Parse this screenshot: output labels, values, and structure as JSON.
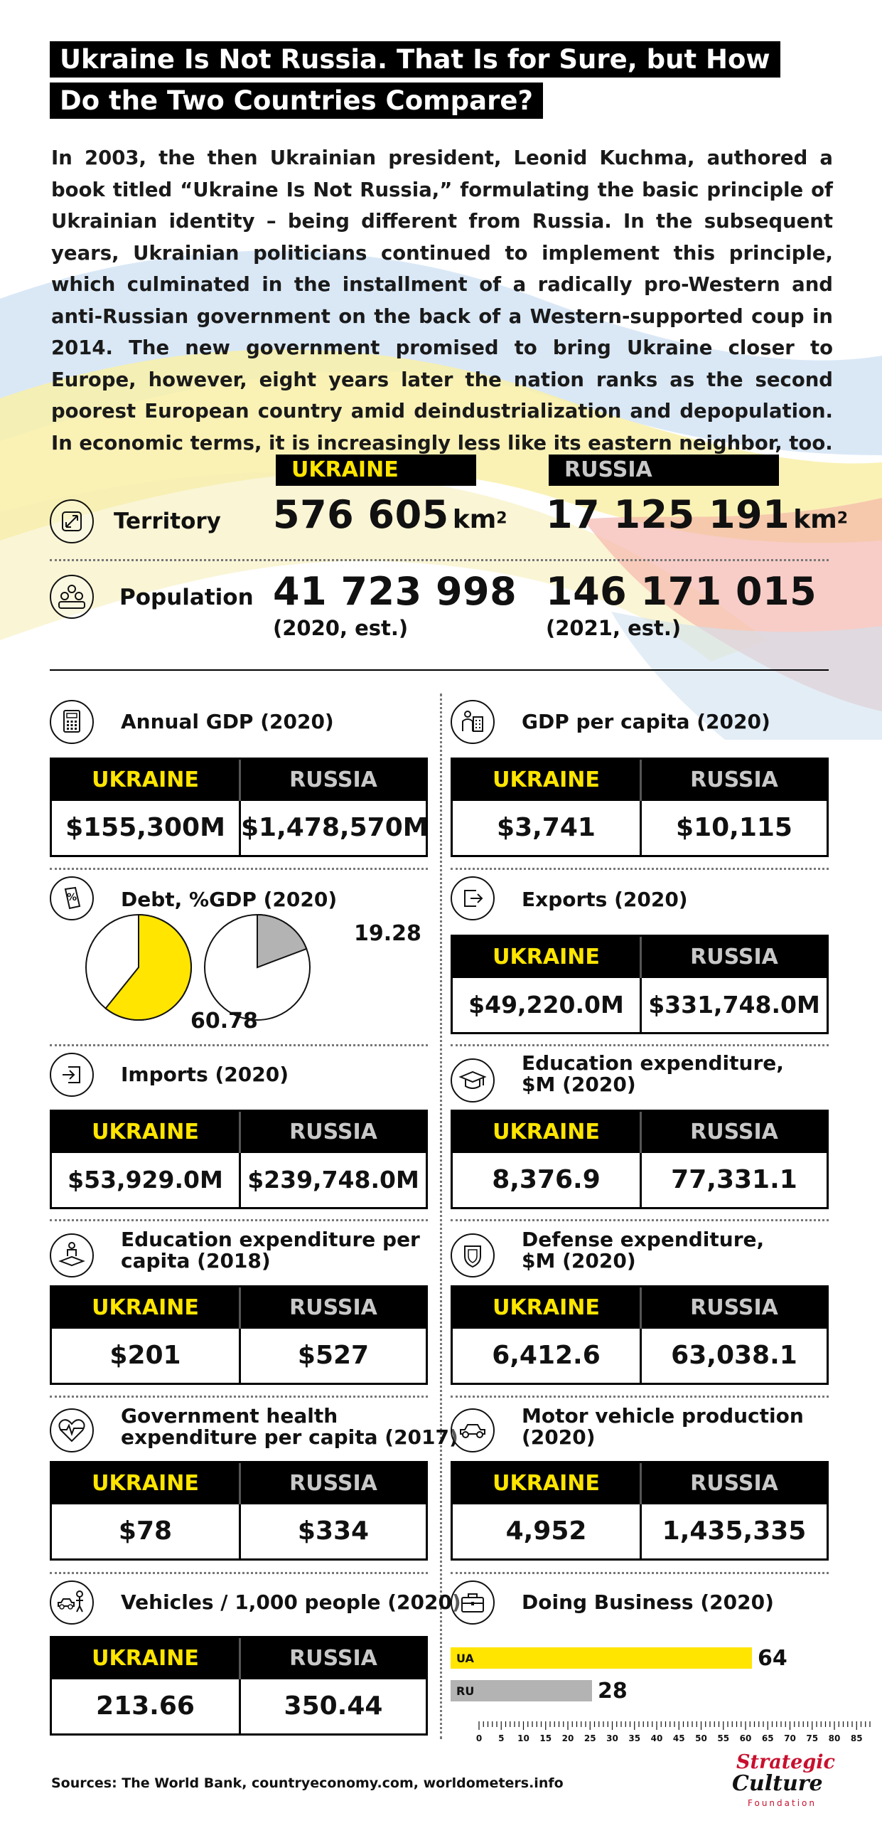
{
  "title": {
    "line1": "Ukraine Is Not Russia. That Is for Sure, but How",
    "line2": "Do the Two Countries Compare?"
  },
  "intro": "In 2003, the then Ukrainian president, Leonid Kuchma, authored a book titled “Ukraine Is Not Russia,” formulating the basic principle of Ukrainian identity – being different from Russia. In the subsequent years, Ukrainian politicians continued to implement this principle, which culminated in the installment of a radically pro-Western and anti-Russian government on the back of a Western-supported coup in 2014. The new government promised to bring Ukraine closer to Europe, however, eight years later the nation ranks as the second poorest European country amid deindustrialization and depopulation. In economic terms, it is increasingly less like its eastern neighbor, too.",
  "labels": {
    "ukraine": "UKRAINE",
    "russia": "RUSSIA"
  },
  "colors": {
    "ukraine": "#ffe500",
    "russia": "#b3b3b3",
    "header_bg": "#000000"
  },
  "territory": {
    "label": "Territory",
    "icon": "expand-arrows-icon",
    "ukraine": "576 605",
    "russia": "17 125 191",
    "unit": "km",
    "unit_sup": "2"
  },
  "population": {
    "label": "Population",
    "icon": "people-icon",
    "ukraine": "41 723 998",
    "ukraine_note": "(2020, est.)",
    "russia": "146 171 015",
    "russia_note": "(2021, est.)"
  },
  "panels": {
    "annual_gdp": {
      "title": "Annual GDP (2020)",
      "icon": "calculator-icon",
      "ukraine": "$155,300M",
      "russia": "$1,478,570M"
    },
    "gdp_per_capita": {
      "title": "GDP per capita (2020)",
      "icon": "person-building-icon",
      "ukraine": "$3,741",
      "russia": "$10,115"
    },
    "exports": {
      "title": "Exports (2020)",
      "icon": "export-icon",
      "ukraine": "$49,220.0M",
      "russia": "$331,748.0M"
    },
    "imports": {
      "title": "Imports (2020)",
      "icon": "import-icon",
      "ukraine": "$53,929.0M",
      "russia": "$239,748.0M"
    },
    "education_exp": {
      "title_line1": "Education expenditure,",
      "title_line2": "$M (2020)",
      "icon": "graduation-cap-icon",
      "ukraine": "8,376.9",
      "russia": "77,331.1"
    },
    "education_per_capita": {
      "title_line1": "Education expenditure per",
      "title_line2": "capita (2018)",
      "icon": "student-icon",
      "ukraine": "$201",
      "russia": "$527"
    },
    "defense_exp": {
      "title_line1": "Defense expenditure,",
      "title_line2": "$M (2020)",
      "icon": "shield-icon",
      "ukraine": "6,412.6",
      "russia": "63,038.1"
    },
    "health_exp": {
      "title_line1": "Government health",
      "title_line2": "expenditure per capita (2017)",
      "icon": "heart-pulse-icon",
      "ukraine": "$78",
      "russia": "$334"
    },
    "motor_vehicle": {
      "title_line1": "Motor vehicle production",
      "title_line2": "(2020)",
      "icon": "car-icon",
      "ukraine": "4,952",
      "russia": "1,435,335"
    },
    "vehicles_per_1000": {
      "title": "Vehicles / 1,000 people (2020)",
      "icon": "person-car-icon",
      "ukraine": "213.66",
      "russia": "350.44"
    },
    "debt": {
      "title": "Debt, %GDP (2020)",
      "icon": "percent-document-icon"
    },
    "doing_business": {
      "title": "Doing Business (2020)",
      "icon": "briefcase-icon"
    }
  },
  "chart_data": [
    {
      "type": "pie",
      "title": "Debt, %GDP (2020)",
      "series": [
        {
          "name": "",
          "values": [
            60.78
          ],
          "label": "60.78",
          "color": "#ffe500"
        },
        {
          "name": "",
          "values": [
            19.28
          ],
          "label": "19.28",
          "color": "#b3b3b3"
        }
      ],
      "max": 100
    },
    {
      "type": "bar",
      "orientation": "horizontal",
      "title": "Doing Business (2020)",
      "categories": [
        "UA",
        "RU"
      ],
      "values": [
        64,
        28
      ],
      "value_labels": [
        "64",
        "28"
      ],
      "colors": [
        "#ffe500",
        "#b3b3b3"
      ],
      "xlim": [
        0,
        90
      ],
      "xticks": [
        0,
        5,
        10,
        15,
        20,
        25,
        30,
        35,
        40,
        45,
        50,
        55,
        60,
        65,
        70,
        75,
        80,
        85
      ]
    }
  ],
  "sources": "Sources: The World Bank, countryeconomy.com, worldometers.info",
  "logo": {
    "line1": "Strategic",
    "line2": "Culture",
    "line3": "Foundation"
  }
}
